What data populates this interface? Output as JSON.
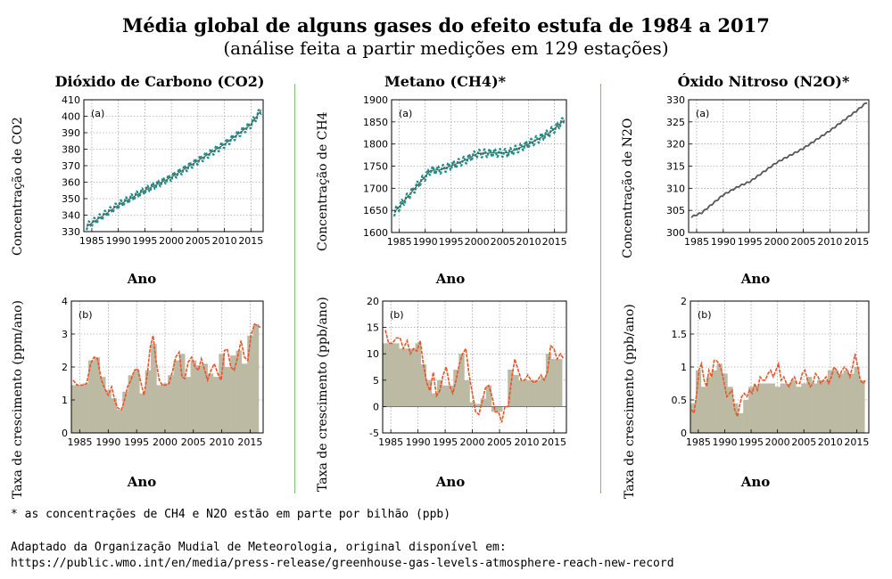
{
  "title": "Média global de alguns gases do efeito estufa de 1984 a 2017",
  "subtitle": "(análise feita a partir medições em 129 estações)",
  "columns": [
    {
      "title": "Dióxido de Carbono (CO2)"
    },
    {
      "title": "Metano (CH4)*"
    },
    {
      "title": "Óxido Nitroso (N2O)*"
    }
  ],
  "footnote": "* as concentrações de CH4 e N2O estão em parte por bilhão (ppb)",
  "source_line1": "Adaptado da Organização Mudial de Meteorologia, original disponível em:",
  "source_line2": "https://public.wmo.int/en/media/press-release/greenhouse-gas-levels-atmosphere-reach-new-record",
  "colors": {
    "co2_line": "#1a8f86",
    "fit_line": "#555555",
    "growth_bars": "#bdbaa4",
    "growth_line": "#e8552a",
    "divider": "#7cc46a"
  },
  "chart_data": [
    {
      "id": "co2_concentration",
      "type": "line",
      "panel_label": "(a)",
      "xlabel": "Ano",
      "ylabel": "Concentração de CO2",
      "xlim": [
        1983.5,
        2017.3
      ],
      "ylim": [
        330,
        410
      ],
      "xticks": [
        1985,
        1990,
        1995,
        2000,
        2005,
        2010,
        2015
      ],
      "yticks": [
        330,
        340,
        350,
        360,
        370,
        380,
        390,
        400,
        410
      ],
      "grid": true,
      "seasonal_amplitude": 2.2,
      "trend": {
        "x": [
          1984,
          1990,
          1995,
          2000,
          2005,
          2010,
          2015,
          2017
        ],
        "y": [
          333,
          346,
          355,
          363,
          373,
          383,
          395,
          404
        ]
      }
    },
    {
      "id": "ch4_concentration",
      "type": "line",
      "panel_label": "(a)",
      "xlabel": "Ano",
      "ylabel": "Concentração de CH4",
      "xlim": [
        1983.5,
        2017.3
      ],
      "ylim": [
        1600,
        1900
      ],
      "xticks": [
        1985,
        1990,
        1995,
        2000,
        2005,
        2010,
        2015
      ],
      "yticks": [
        1600,
        1650,
        1700,
        1750,
        1800,
        1850,
        1900
      ],
      "grid": true,
      "seasonal_amplitude": 9,
      "trend": {
        "x": [
          1984,
          1988,
          1991,
          1993,
          1996,
          1998,
          2000,
          2003,
          2006,
          2008,
          2010,
          2014,
          2017
        ],
        "y": [
          1645,
          1700,
          1740,
          1742,
          1755,
          1765,
          1778,
          1780,
          1780,
          1790,
          1800,
          1825,
          1855
        ]
      }
    },
    {
      "id": "n2o_concentration",
      "type": "line",
      "panel_label": "(a)",
      "xlabel": "Ano",
      "ylabel": "Concentração de N2O",
      "xlim": [
        1983.5,
        2017.3
      ],
      "ylim": [
        300,
        330
      ],
      "xticks": [
        1985,
        1990,
        1995,
        2000,
        2005,
        2010,
        2015
      ],
      "yticks": [
        300,
        305,
        310,
        315,
        320,
        325,
        330
      ],
      "grid": true,
      "seasonal_amplitude": 0.15,
      "trend": {
        "x": [
          1984,
          1986,
          1990,
          1993,
          1995,
          2000,
          2005,
          2010,
          2015,
          2017
        ],
        "y": [
          303.5,
          304.5,
          308.5,
          310.5,
          311.5,
          315.8,
          319,
          323,
          327.5,
          329.5
        ]
      }
    },
    {
      "id": "co2_growth",
      "type": "bar",
      "panel_label": "(b)",
      "xlabel": "Ano",
      "ylabel": "Taxa de crescimento (ppm/ano)",
      "xlim": [
        1983.5,
        2017.3
      ],
      "ylim": [
        0,
        4
      ],
      "xticks": [
        1985,
        1990,
        1995,
        2000,
        2005,
        2010,
        2015
      ],
      "yticks": [
        0,
        1,
        2,
        3,
        4
      ],
      "grid": true,
      "years": [
        1984,
        1985,
        1986,
        1987,
        1988,
        1989,
        1990,
        1991,
        1992,
        1993,
        1994,
        1995,
        1996,
        1997,
        1998,
        1999,
        2000,
        2001,
        2002,
        2003,
        2004,
        2005,
        2006,
        2007,
        2008,
        2009,
        2010,
        2011,
        2012,
        2013,
        2014,
        2015,
        2016
      ],
      "values": [
        1.45,
        1.45,
        1.5,
        2.2,
        2.3,
        1.7,
        1.3,
        1.05,
        0.7,
        1.25,
        1.75,
        1.9,
        1.2,
        1.9,
        2.7,
        1.45,
        1.5,
        1.75,
        2.2,
        2.4,
        1.7,
        2.2,
        2.05,
        2.1,
        1.8,
        1.7,
        2.4,
        2.0,
        2.35,
        2.5,
        2.1,
        2.95,
        3.3
      ],
      "growth_curve": {
        "x": [
          1983.8,
          1984.5,
          1985.5,
          1986.2,
          1986.9,
          1987.5,
          1988.1,
          1988.8,
          1989.5,
          1990.0,
          1990.6,
          1991.2,
          1991.7,
          1992.3,
          1992.8,
          1993.4,
          1994.0,
          1994.6,
          1995.2,
          1995.8,
          1996.3,
          1996.9,
          1997.4,
          1997.9,
          1998.4,
          1999.0,
          1999.5,
          2000.1,
          2000.7,
          2001.3,
          2001.9,
          2002.5,
          2003.0,
          2003.5,
          2004.1,
          2004.7,
          2005.3,
          2005.9,
          2006.4,
          2007.0,
          2007.5,
          2008.1,
          2008.7,
          2009.3,
          2009.9,
          2010.5,
          2011.0,
          2011.6,
          2012.2,
          2012.8,
          2013.4,
          2014.0,
          2014.6,
          2015.2,
          2015.8,
          2016.4,
          2016.8
        ],
        "y": [
          1.6,
          1.45,
          1.45,
          1.5,
          2.1,
          2.3,
          2.25,
          1.6,
          1.3,
          1.15,
          1.4,
          0.95,
          0.75,
          0.7,
          0.95,
          1.4,
          1.6,
          1.9,
          1.95,
          1.5,
          1.15,
          1.8,
          2.6,
          2.95,
          2.2,
          1.6,
          1.45,
          1.45,
          1.5,
          1.85,
          2.3,
          2.45,
          1.7,
          1.65,
          2.15,
          2.3,
          2.0,
          1.9,
          2.25,
          1.9,
          1.6,
          1.9,
          2.1,
          1.8,
          1.6,
          2.5,
          2.55,
          2.0,
          1.9,
          2.3,
          2.8,
          2.3,
          2.2,
          3.0,
          3.3,
          3.25,
          3.2
        ]
      }
    },
    {
      "id": "ch4_growth",
      "type": "bar",
      "panel_label": "(b)",
      "xlabel": "Ano",
      "ylabel": "Taxa de crescimento (ppb/ano)",
      "xlim": [
        1983.5,
        2017.3
      ],
      "ylim": [
        -5,
        20
      ],
      "xticks": [
        1985,
        1990,
        1995,
        2000,
        2005,
        2010,
        2015
      ],
      "yticks": [
        -5,
        0,
        5,
        10,
        15,
        20
      ],
      "grid": true,
      "years": [
        1984,
        1985,
        1986,
        1987,
        1988,
        1989,
        1990,
        1991,
        1992,
        1993,
        1994,
        1995,
        1996,
        1997,
        1998,
        1999,
        2000,
        2001,
        2002,
        2003,
        2004,
        2005,
        2006,
        2007,
        2008,
        2009,
        2010,
        2011,
        2012,
        2013,
        2014,
        2015,
        2016
      ],
      "values": [
        12,
        12,
        12,
        11,
        11,
        11,
        12,
        8,
        5,
        2.5,
        5,
        4,
        4,
        7,
        10,
        5,
        0.8,
        0.5,
        1.5,
        4,
        -1,
        -1,
        0,
        7,
        6,
        5,
        5,
        5,
        5,
        5.5,
        10,
        9,
        9
      ],
      "growth_curve": {
        "x": [
          1984.0,
          1984.6,
          1985.3,
          1986.0,
          1986.7,
          1987.3,
          1988.0,
          1988.6,
          1989.2,
          1989.8,
          1990.4,
          1991.0,
          1991.6,
          1992.2,
          1992.8,
          1993.4,
          1994.0,
          1994.6,
          1995.2,
          1995.8,
          1996.4,
          1997.0,
          1997.6,
          1998.2,
          1998.8,
          1999.4,
          2000.0,
          2000.6,
          2001.2,
          2001.8,
          2002.4,
          2003.0,
          2003.6,
          2004.2,
          2004.8,
          2005.4,
          2006.0,
          2006.6,
          2007.2,
          2007.8,
          2008.4,
          2009.0,
          2009.6,
          2010.2,
          2010.8,
          2011.4,
          2012.0,
          2012.6,
          2013.2,
          2013.8,
          2014.4,
          2015.0,
          2015.6,
          2016.2,
          2016.8
        ],
        "y": [
          14.5,
          12,
          12,
          13,
          13,
          11,
          12.5,
          10,
          11,
          10.5,
          12.5,
          8,
          4.5,
          3,
          6.5,
          2,
          3,
          6,
          7.5,
          4,
          2.5,
          5,
          8,
          10,
          11,
          6,
          2.5,
          -1,
          -1.5,
          1,
          3.5,
          4,
          2,
          -1,
          -1,
          -3,
          0,
          0,
          5,
          9,
          7,
          5,
          5,
          6,
          5,
          4.5,
          5,
          6,
          5,
          6.5,
          11.5,
          11,
          9,
          10,
          9
        ]
      }
    },
    {
      "id": "n2o_growth",
      "type": "bar",
      "panel_label": "(b)",
      "xlabel": "Ano",
      "ylabel": "Taxa de crescimento (ppb/ano)",
      "xlim": [
        1983.5,
        2017.3
      ],
      "ylim": [
        0,
        2
      ],
      "xticks": [
        1985,
        1990,
        1995,
        2000,
        2005,
        2010,
        2015
      ],
      "yticks": [
        0,
        0.5,
        1,
        1.5,
        2
      ],
      "grid": true,
      "years": [
        1984,
        1985,
        1986,
        1987,
        1988,
        1989,
        1990,
        1991,
        1992,
        1993,
        1994,
        1995,
        1996,
        1997,
        1998,
        1999,
        2000,
        2001,
        2002,
        2003,
        2004,
        2005,
        2006,
        2007,
        2008,
        2009,
        2010,
        2011,
        2012,
        2013,
        2014,
        2015,
        2016
      ],
      "values": [
        0.45,
        0.95,
        0.7,
        0.85,
        0.95,
        1.05,
        0.9,
        0.7,
        0.45,
        0.3,
        0.5,
        0.7,
        0.7,
        0.75,
        0.75,
        0.75,
        0.7,
        0.75,
        0.75,
        0.8,
        0.7,
        0.75,
        0.85,
        0.75,
        0.8,
        0.8,
        0.95,
        0.95,
        0.9,
        0.95,
        0.9,
        1.0,
        0.8
      ],
      "growth_curve": {
        "x": [
          1983.7,
          1984.2,
          1984.7,
          1985.1,
          1985.6,
          1986.1,
          1986.6,
          1987.0,
          1987.5,
          1988.0,
          1988.4,
          1988.9,
          1989.4,
          1989.9,
          1990.4,
          1990.9,
          1991.4,
          1991.9,
          1992.4,
          1992.8,
          1993.2,
          1993.7,
          1994.2,
          1994.7,
          1995.2,
          1995.7,
          1996.2,
          1996.7,
          1997.2,
          1997.7,
          1998.2,
          1998.7,
          1999.2,
          1999.7,
          2000.2,
          2000.7,
          2001.2,
          2001.7,
          2002.2,
          2002.7,
          2003.2,
          2003.7,
          2004.2,
          2004.7,
          2005.2,
          2005.7,
          2006.2,
          2006.7,
          2007.2,
          2007.7,
          2008.2,
          2008.7,
          2009.2,
          2009.7,
          2010.2,
          2010.7,
          2011.2,
          2011.7,
          2012.2,
          2012.7,
          2013.2,
          2013.7,
          2014.2,
          2014.7,
          2015.2,
          2015.7,
          2016.2,
          2016.7
        ],
        "y": [
          0.35,
          0.3,
          0.6,
          0.95,
          1.05,
          0.8,
          0.7,
          0.95,
          0.85,
          1.1,
          1.1,
          1.05,
          0.95,
          0.75,
          0.55,
          0.6,
          0.65,
          0.35,
          0.25,
          0.4,
          0.55,
          0.6,
          0.55,
          0.65,
          0.6,
          0.75,
          0.65,
          0.85,
          0.8,
          0.8,
          0.9,
          0.95,
          0.85,
          0.95,
          1.05,
          0.8,
          0.85,
          0.75,
          0.7,
          0.8,
          0.85,
          0.75,
          0.75,
          0.9,
          0.95,
          0.8,
          0.7,
          0.75,
          0.9,
          0.85,
          0.75,
          0.8,
          0.85,
          0.75,
          0.85,
          1.0,
          0.95,
          0.85,
          0.95,
          1.0,
          0.95,
          0.85,
          1.0,
          1.2,
          1.0,
          0.8,
          0.75,
          0.8
        ]
      }
    }
  ]
}
